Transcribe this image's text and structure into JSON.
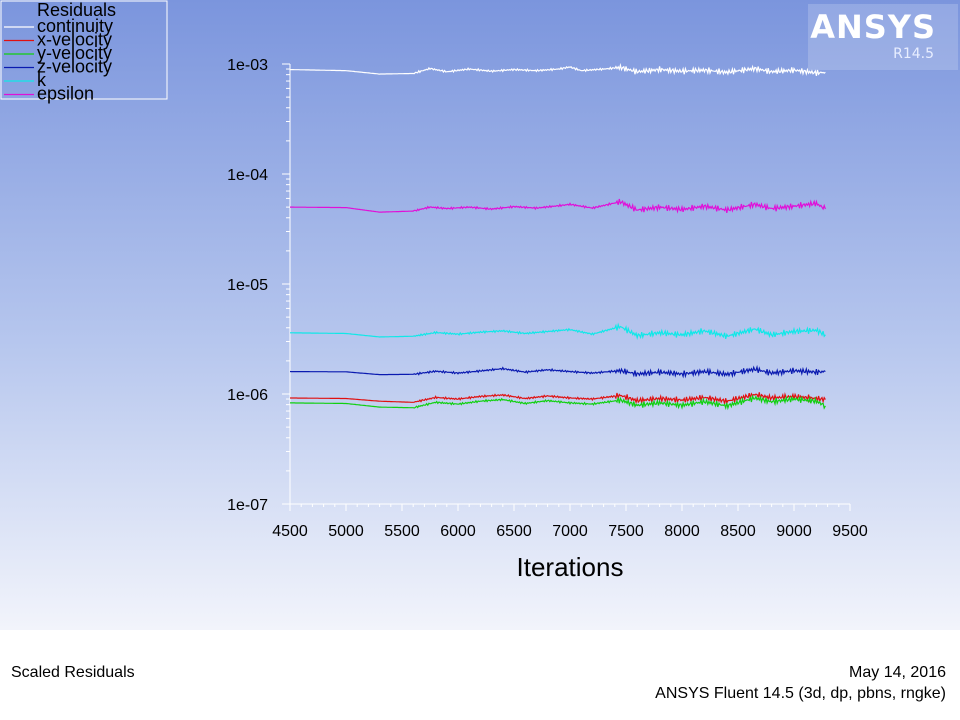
{
  "chart_data": {
    "type": "line",
    "title": "Scaled Residuals",
    "xlabel": "Iterations",
    "ylabel": "",
    "yscale": "log",
    "xlim": [
      4500,
      9500
    ],
    "ylim": [
      1e-07,
      0.001
    ],
    "x_ticks": [
      "4500",
      "5000",
      "5500",
      "6000",
      "6500",
      "7000",
      "7500",
      "8000",
      "8500",
      "9000",
      "9500"
    ],
    "y_ticks": [
      "1e-07",
      "1e-06",
      "1e-05",
      "1e-04",
      "1e-03"
    ],
    "legend_title": "Residuals",
    "legend_position": "top-left",
    "series": [
      {
        "name": "continuity",
        "color": "#ffffff",
        "x": [
          4500,
          5000,
          5300,
          5600,
          5750,
          5900,
          6100,
          6300,
          6500,
          6700,
          6900,
          7000,
          7100,
          7300,
          7450,
          7600,
          7800,
          8000,
          8200,
          8400,
          8650,
          8800,
          9000,
          9200,
          9280
        ],
        "y": [
          0.00089,
          0.00087,
          0.00081,
          0.00082,
          0.00091,
          0.00085,
          0.0009,
          0.00086,
          0.00089,
          0.00087,
          0.0009,
          0.00094,
          0.00087,
          0.0009,
          0.00093,
          0.00085,
          0.00089,
          0.00086,
          0.00088,
          0.00084,
          0.00091,
          0.00085,
          0.00088,
          0.00083,
          0.00084
        ]
      },
      {
        "name": "x-velocity",
        "color": "#e01010",
        "x": [
          4500,
          5000,
          5300,
          5600,
          5800,
          6000,
          6200,
          6400,
          6600,
          6800,
          7000,
          7200,
          7450,
          7600,
          7800,
          8000,
          8200,
          8400,
          8650,
          8800,
          9000,
          9200,
          9280
        ],
        "y": [
          9.2e-07,
          9.1e-07,
          8.6e-07,
          8.4e-07,
          9.3e-07,
          9e-07,
          9.5e-07,
          9.8e-07,
          9.1e-07,
          9.6e-07,
          9.2e-07,
          9e-07,
          9.7e-07,
          8.7e-07,
          9.1e-07,
          8.8e-07,
          9.3e-07,
          8.6e-07,
          9.9e-07,
          9.2e-07,
          9.5e-07,
          9.1e-07,
          8.9e-07
        ]
      },
      {
        "name": "y-velocity",
        "color": "#10d010",
        "x": [
          4500,
          5000,
          5300,
          5600,
          5800,
          6000,
          6200,
          6400,
          6600,
          6800,
          7000,
          7200,
          7450,
          7600,
          7800,
          8000,
          8200,
          8400,
          8650,
          8800,
          9000,
          9200,
          9280
        ],
        "y": [
          8.3e-07,
          8.2e-07,
          7.6e-07,
          7.5e-07,
          8.4e-07,
          8.1e-07,
          8.6e-07,
          8.9e-07,
          8.2e-07,
          8.7e-07,
          8.3e-07,
          8.1e-07,
          8.8e-07,
          7.9e-07,
          8.3e-07,
          7.9e-07,
          8.5e-07,
          7.8e-07,
          9.2e-07,
          8.5e-07,
          9e-07,
          8.6e-07,
          7.8e-07
        ]
      },
      {
        "name": "z-velocity",
        "color": "#0a1ab0",
        "x": [
          4500,
          5000,
          5300,
          5600,
          5800,
          6000,
          6200,
          6400,
          6600,
          6800,
          7000,
          7200,
          7450,
          7600,
          7800,
          8000,
          8200,
          8400,
          8650,
          8800,
          9000,
          9200,
          9280
        ],
        "y": [
          1.6e-06,
          1.59e-06,
          1.5e-06,
          1.51e-06,
          1.61e-06,
          1.55e-06,
          1.62e-06,
          1.7e-06,
          1.58e-06,
          1.66e-06,
          1.6e-06,
          1.55e-06,
          1.63e-06,
          1.52e-06,
          1.58e-06,
          1.52e-06,
          1.6e-06,
          1.51e-06,
          1.68e-06,
          1.55e-06,
          1.63e-06,
          1.58e-06,
          1.6e-06
        ]
      },
      {
        "name": "k",
        "color": "#10e8e8",
        "x": [
          4500,
          5000,
          5300,
          5600,
          5800,
          6000,
          6200,
          6400,
          6600,
          6800,
          7000,
          7200,
          7450,
          7600,
          7800,
          8000,
          8200,
          8400,
          8650,
          8800,
          9000,
          9200,
          9280
        ],
        "y": [
          3.6e-06,
          3.55e-06,
          3.3e-06,
          3.35e-06,
          3.62e-06,
          3.5e-06,
          3.65e-06,
          3.75e-06,
          3.55e-06,
          3.7e-06,
          3.85e-06,
          3.5e-06,
          4.1e-06,
          3.4e-06,
          3.6e-06,
          3.45e-06,
          3.75e-06,
          3.35e-06,
          3.9e-06,
          3.45e-06,
          3.7e-06,
          3.8e-06,
          3.45e-06
        ]
      },
      {
        "name": "epsilon",
        "color": "#e010d8",
        "x": [
          4500,
          5000,
          5300,
          5600,
          5750,
          5900,
          6100,
          6300,
          6500,
          6700,
          6900,
          7000,
          7200,
          7450,
          7600,
          7800,
          8000,
          8200,
          8400,
          8650,
          8800,
          9000,
          9200,
          9280
        ],
        "y": [
          5e-05,
          4.95e-05,
          4.5e-05,
          4.6e-05,
          5e-05,
          4.85e-05,
          5e-05,
          4.8e-05,
          5.05e-05,
          4.9e-05,
          5.15e-05,
          5.3e-05,
          4.9e-05,
          5.6e-05,
          4.7e-05,
          5e-05,
          4.75e-05,
          5.1e-05,
          4.7e-05,
          5.3e-05,
          4.85e-05,
          5.1e-05,
          5.4e-05,
          4.8e-05
        ]
      }
    ]
  },
  "branding": {
    "logo_name": "ANSYS",
    "logo_version": "R14.5"
  },
  "footer": {
    "plot_title": "Scaled Residuals",
    "date": "May 14, 2016",
    "solver_info": "ANSYS Fluent 14.5 (3d, dp, pbns, rngke)"
  }
}
